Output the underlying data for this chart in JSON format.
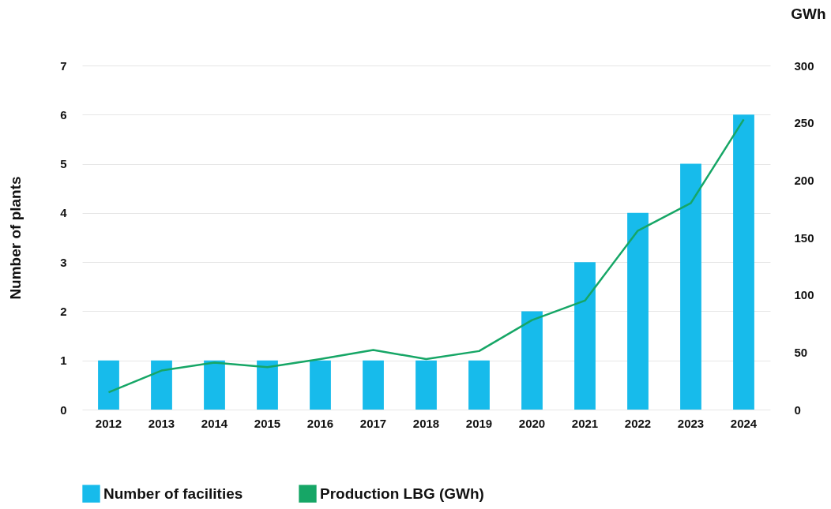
{
  "chart_data": {
    "type": "bar",
    "ylabel": "Number of plants",
    "y2label": "GWh",
    "categories": [
      "2012",
      "2013",
      "2014",
      "2015",
      "2016",
      "2017",
      "2018",
      "2019",
      "2020",
      "2021",
      "2022",
      "2023",
      "2024"
    ],
    "series": [
      {
        "name": "Number of facilities",
        "color": "#17bbeb",
        "values": [
          1,
          1,
          1,
          1,
          1,
          1,
          1,
          1,
          2,
          3,
          4,
          5,
          6
        ]
      },
      {
        "name": "Production LBG (GWh)",
        "type": "line",
        "axis": "y2",
        "color": "#16a666",
        "values": [
          15,
          34,
          41,
          37,
          44,
          52,
          44,
          51,
          78,
          95,
          156,
          180,
          253
        ]
      }
    ],
    "ylim": [
      0,
      7
    ],
    "yticks": [
      0,
      1,
      2,
      3,
      4,
      5,
      6,
      7
    ],
    "y2lim": [
      0,
      300
    ],
    "y2ticks": [
      0,
      50,
      100,
      150,
      200,
      250,
      300
    ],
    "grid": "y",
    "legend": "bottom left",
    "line_style": "solid",
    "marker": "none"
  }
}
